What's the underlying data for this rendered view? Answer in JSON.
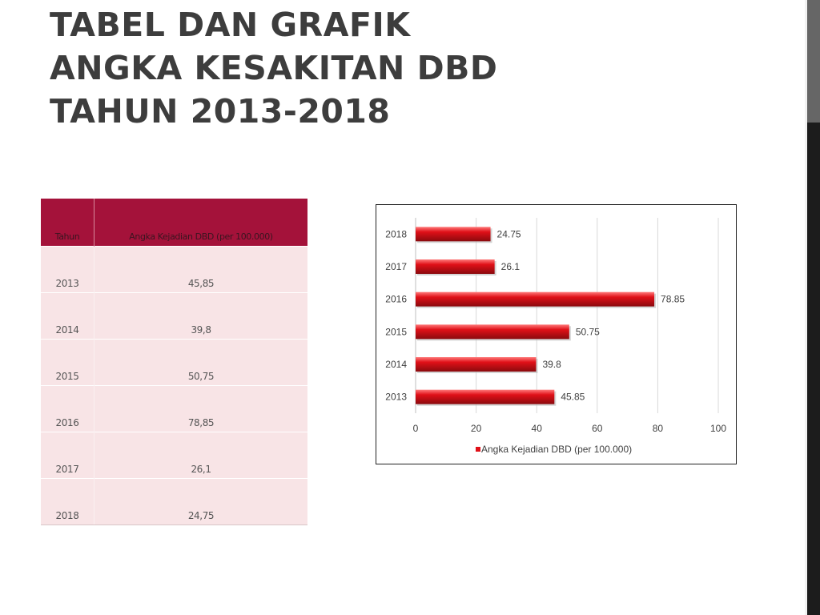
{
  "slide": {
    "title_lines": [
      "TABEL DAN GRAFIK",
      "ANGKA KESAKITAN DBD",
      "TAHUN 2013-2018"
    ]
  },
  "table": {
    "headers": [
      "Tahun",
      "Angka Kejadian DBD (per 100.000)"
    ],
    "rows": [
      [
        "2013",
        "45,85"
      ],
      [
        "2014",
        "39,8"
      ],
      [
        "2015",
        "50,75"
      ],
      [
        "2016",
        "78,85"
      ],
      [
        "2017",
        "26,1"
      ],
      [
        "2018",
        "24,75"
      ]
    ]
  },
  "colors": {
    "bar": "#e01018",
    "table_header": "#a4123a",
    "table_row": "#f8e4e6",
    "title": "#3d3d3d"
  },
  "chart_data": {
    "type": "bar",
    "orientation": "horizontal",
    "categories": [
      "2013",
      "2014",
      "2015",
      "2016",
      "2017",
      "2018"
    ],
    "series": [
      {
        "name": "Angka  Kejadian DBD (per 100.000)",
        "values": [
          45.85,
          39.8,
          50.75,
          78.85,
          26.1,
          24.75
        ]
      }
    ],
    "data_labels": [
      "45.85",
      "39.8",
      "50.75",
      "78.85",
      "26.1",
      "24.75"
    ],
    "x_ticks": [
      0,
      20,
      40,
      60,
      80,
      100
    ],
    "xlim": [
      0,
      100
    ],
    "grid": true,
    "legend_position": "bottom"
  }
}
